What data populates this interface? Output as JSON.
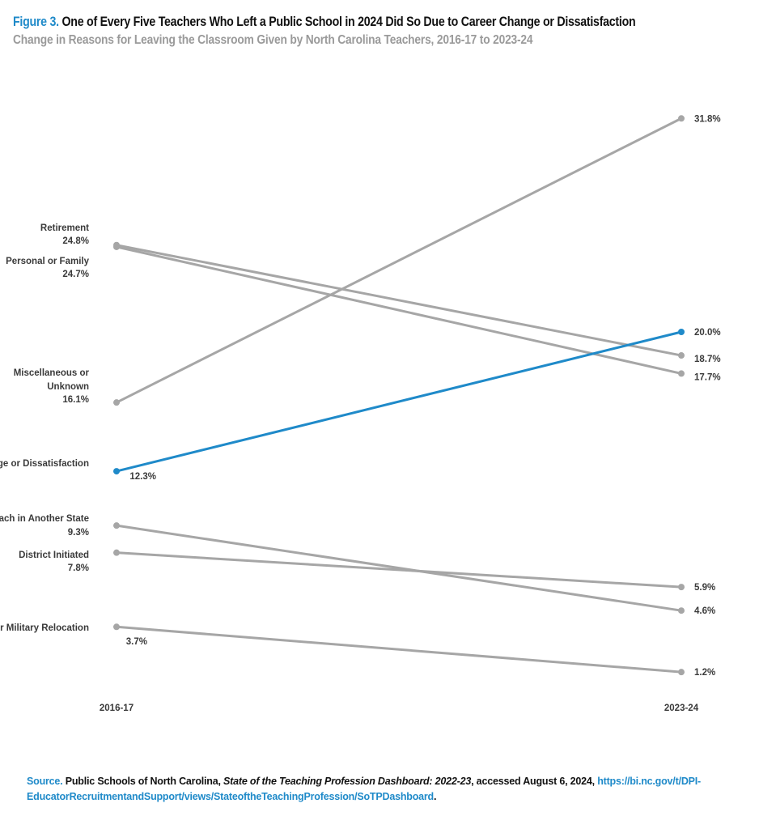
{
  "header": {
    "figure_label": "Figure 3.",
    "title": "One of Every Five Teachers Who Left a Public School in 2024 Did So Due to Career Change or Dissatisfaction",
    "subtitle": "Change in Reasons for Leaving the Classroom Given by North Carolina Teachers, 2016-17 to 2023-24"
  },
  "colors": {
    "accent": "#1f8ac9",
    "series": "#a6a6a6",
    "label": "#3a3a3a"
  },
  "chart_data": {
    "type": "line",
    "title": "",
    "x": [
      "2016-17",
      "2023-24"
    ],
    "ylim": [
      0,
      33
    ],
    "grid": false,
    "series": [
      {
        "name": "Retirement",
        "values": [
          24.8,
          18.7
        ],
        "start_label": "24.8%",
        "end_label": "18.7%",
        "highlight": false
      },
      {
        "name": "Personal or Family",
        "values": [
          24.7,
          17.7
        ],
        "start_label": "24.7%",
        "end_label": "17.7%",
        "highlight": false
      },
      {
        "name": "Miscellaneous or Unknown",
        "values": [
          16.1,
          31.8
        ],
        "start_label": "16.1%",
        "end_label": "31.8%",
        "highlight": false
      },
      {
        "name": "Career Change or Dissatisfaction",
        "values": [
          12.3,
          20.0
        ],
        "start_label": "12.3%",
        "end_label": "20.0%",
        "highlight": true
      },
      {
        "name": "Teach in Another State",
        "values": [
          9.3,
          4.6
        ],
        "start_label": "9.3%",
        "end_label": "4.6%",
        "highlight": false
      },
      {
        "name": "District Initiated",
        "values": [
          7.8,
          5.9
        ],
        "start_label": "7.8%",
        "end_label": "5.9%",
        "highlight": false
      },
      {
        "name": "Term Ended or Military Relocation",
        "values": [
          3.7,
          1.2
        ],
        "start_label": "3.7%",
        "end_label": "1.2%",
        "highlight": false
      }
    ]
  },
  "source": {
    "label": "Source.",
    "text1": "Public Schools of North Carolina,",
    "italic": "State of the Teaching Profession Dashboard: 2022-23",
    "text2": ", accessed August 6, 2024,",
    "url": "https://bi.nc.gov/t/DPI-EducatorRecruitmentandSupport/views/StateoftheTeachingProfession/SoTPDashboard",
    "end": "."
  }
}
